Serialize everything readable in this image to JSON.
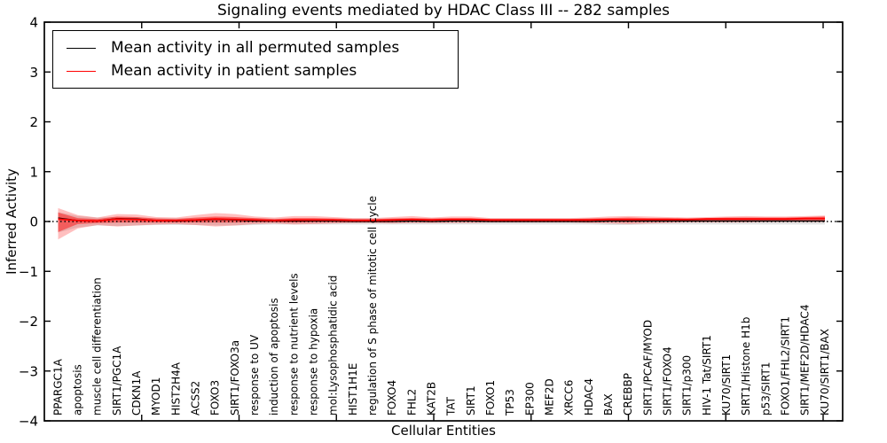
{
  "chart_data": {
    "type": "line",
    "title": "Signaling events mediated by HDAC Class III -- 282 samples",
    "xlabel": "Cellular Entities",
    "ylabel": "Inferred Activity",
    "ylim": [
      -4,
      4
    ],
    "yticks": [
      4,
      3,
      2,
      1,
      0,
      -1,
      -2,
      -3,
      -4
    ],
    "grid": false,
    "zero_line": "dotted",
    "legend_position": "upper left",
    "colors": {
      "permuted": "#000000",
      "patient": "#ff0000",
      "patient_band": "#ff0000",
      "permuted_band": "#999999"
    },
    "legend": [
      {
        "label": "Mean activity in all permuted samples",
        "color": "#000000"
      },
      {
        "label": "Mean activity in patient samples",
        "color": "#ff0000"
      }
    ],
    "categories": [
      "PPARGC1A",
      "apoptosis",
      "muscle cell differentiation",
      "SIRT1/PGC1A",
      "CDKN1A",
      "MYOD1",
      "HIST2H4A",
      "ACSS2",
      "FOXO3",
      "SIRT1/FOXO3a",
      "response to UV",
      "induction of apoptosis",
      "response to nutrient levels",
      "response to hypoxia",
      "mol:Lysophosphatidic acid",
      "HIST1H1E",
      "regulation of S phase of mitotic cell cycle",
      "FOXO4",
      "FHL2",
      "KAT2B",
      "TAT",
      "SIRT1",
      "FOXO1",
      "TP53",
      "EP300",
      "MEF2D",
      "XRCC6",
      "HDAC4",
      "BAX",
      "CREBBP",
      "SIRT1/PCAF/MYOD",
      "SIRT1/FOXO4",
      "SIRT1/p300",
      "HIV-1 Tat/SIRT1",
      "KU70/SIRT1",
      "SIRT1/Histone H1b",
      "p53/SIRT1",
      "FOXO1/FHL2/SIRT1",
      "SIRT1/MEF2D/HDAC4",
      "KU70/SIRT1/BAX"
    ],
    "series": [
      {
        "name": "Mean activity in all permuted samples",
        "color": "#000000",
        "values": [
          0.07,
          0.02,
          0.01,
          0.06,
          0.05,
          0.02,
          0.01,
          0.02,
          0.04,
          0.03,
          0.01,
          0.01,
          0.01,
          0.01,
          0.01,
          0.0,
          0.0,
          0.0,
          0.01,
          0.0,
          0.01,
          0.01,
          0.0,
          0.0,
          0.0,
          0.0,
          0.0,
          0.0,
          0.01,
          0.01,
          0.01,
          0.01,
          0.01,
          0.01,
          0.01,
          0.01,
          0.01,
          0.01,
          0.01,
          0.01
        ]
      },
      {
        "name": "Mean activity in patient samples",
        "color": "#ff0000",
        "values": [
          0.05,
          0.02,
          0.01,
          0.05,
          0.04,
          0.02,
          0.02,
          0.03,
          0.05,
          0.04,
          0.03,
          0.02,
          0.03,
          0.03,
          0.03,
          0.02,
          0.02,
          0.03,
          0.04,
          0.03,
          0.04,
          0.04,
          0.03,
          0.03,
          0.03,
          0.03,
          0.03,
          0.03,
          0.04,
          0.04,
          0.04,
          0.04,
          0.04,
          0.05,
          0.05,
          0.05,
          0.05,
          0.05,
          0.06,
          0.06
        ]
      }
    ],
    "bands": [
      {
        "name": "permuted-sample-range",
        "color": "#999999",
        "opacity": 0.28,
        "upper": [
          0.19,
          0.11,
          0.08,
          0.09,
          0.08,
          0.07,
          0.07,
          0.07,
          0.08,
          0.08,
          0.07,
          0.06,
          0.06,
          0.06,
          0.06,
          0.06,
          0.06,
          0.06,
          0.06,
          0.06,
          0.06,
          0.06,
          0.06,
          0.06,
          0.06,
          0.06,
          0.06,
          0.06,
          0.06,
          0.06,
          0.06,
          0.06,
          0.06,
          0.06,
          0.06,
          0.06,
          0.06,
          0.06,
          0.06,
          0.06
        ],
        "lower": [
          -0.22,
          -0.12,
          -0.08,
          -0.09,
          -0.08,
          -0.07,
          -0.07,
          -0.07,
          -0.08,
          -0.08,
          -0.07,
          -0.06,
          -0.06,
          -0.06,
          -0.06,
          -0.06,
          -0.06,
          -0.06,
          -0.06,
          -0.06,
          -0.06,
          -0.06,
          -0.06,
          -0.06,
          -0.06,
          -0.06,
          -0.06,
          -0.06,
          -0.07,
          -0.07,
          -0.06,
          -0.06,
          -0.06,
          -0.06,
          -0.06,
          -0.06,
          -0.06,
          -0.06,
          -0.06,
          -0.06
        ]
      },
      {
        "name": "patient-range-outer",
        "color": "#ff0000",
        "opacity": 0.25,
        "upper": [
          0.27,
          0.13,
          0.08,
          0.15,
          0.14,
          0.09,
          0.08,
          0.13,
          0.17,
          0.15,
          0.1,
          0.08,
          0.11,
          0.11,
          0.09,
          0.07,
          0.07,
          0.09,
          0.11,
          0.08,
          0.1,
          0.1,
          0.07,
          0.07,
          0.07,
          0.07,
          0.07,
          0.08,
          0.1,
          0.11,
          0.1,
          0.09,
          0.08,
          0.09,
          0.1,
          0.11,
          0.1,
          0.1,
          0.11,
          0.12
        ],
        "lower": [
          -0.36,
          -0.14,
          -0.07,
          -0.1,
          -0.08,
          -0.06,
          -0.05,
          -0.07,
          -0.1,
          -0.08,
          -0.05,
          -0.04,
          -0.06,
          -0.05,
          -0.04,
          -0.03,
          -0.03,
          -0.04,
          -0.03,
          -0.03,
          -0.03,
          -0.03,
          -0.02,
          -0.02,
          -0.02,
          -0.02,
          -0.02,
          -0.03,
          -0.04,
          -0.05,
          -0.04,
          -0.03,
          -0.02,
          -0.02,
          -0.02,
          -0.02,
          -0.01,
          -0.01,
          -0.01,
          -0.01
        ]
      },
      {
        "name": "patient-range-inner",
        "color": "#ff0000",
        "opacity": 0.45,
        "upper": [
          0.18,
          0.07,
          0.05,
          0.1,
          0.09,
          0.06,
          0.05,
          0.08,
          0.1,
          0.09,
          0.07,
          0.05,
          0.07,
          0.07,
          0.06,
          0.05,
          0.05,
          0.06,
          0.07,
          0.06,
          0.07,
          0.07,
          0.05,
          0.05,
          0.05,
          0.05,
          0.05,
          0.06,
          0.07,
          0.08,
          0.07,
          0.07,
          0.06,
          0.07,
          0.08,
          0.08,
          0.08,
          0.08,
          0.09,
          0.1
        ],
        "lower": [
          -0.21,
          -0.05,
          -0.03,
          -0.02,
          -0.02,
          -0.02,
          -0.02,
          -0.02,
          -0.02,
          -0.02,
          -0.01,
          -0.01,
          -0.02,
          -0.01,
          -0.01,
          -0.01,
          -0.01,
          -0.01,
          0.0,
          -0.01,
          0.0,
          0.0,
          -0.01,
          -0.01,
          -0.01,
          -0.01,
          -0.01,
          -0.01,
          0.0,
          -0.01,
          0.0,
          0.0,
          0.0,
          0.01,
          0.01,
          0.01,
          0.01,
          0.01,
          0.02,
          0.02
        ]
      }
    ]
  }
}
